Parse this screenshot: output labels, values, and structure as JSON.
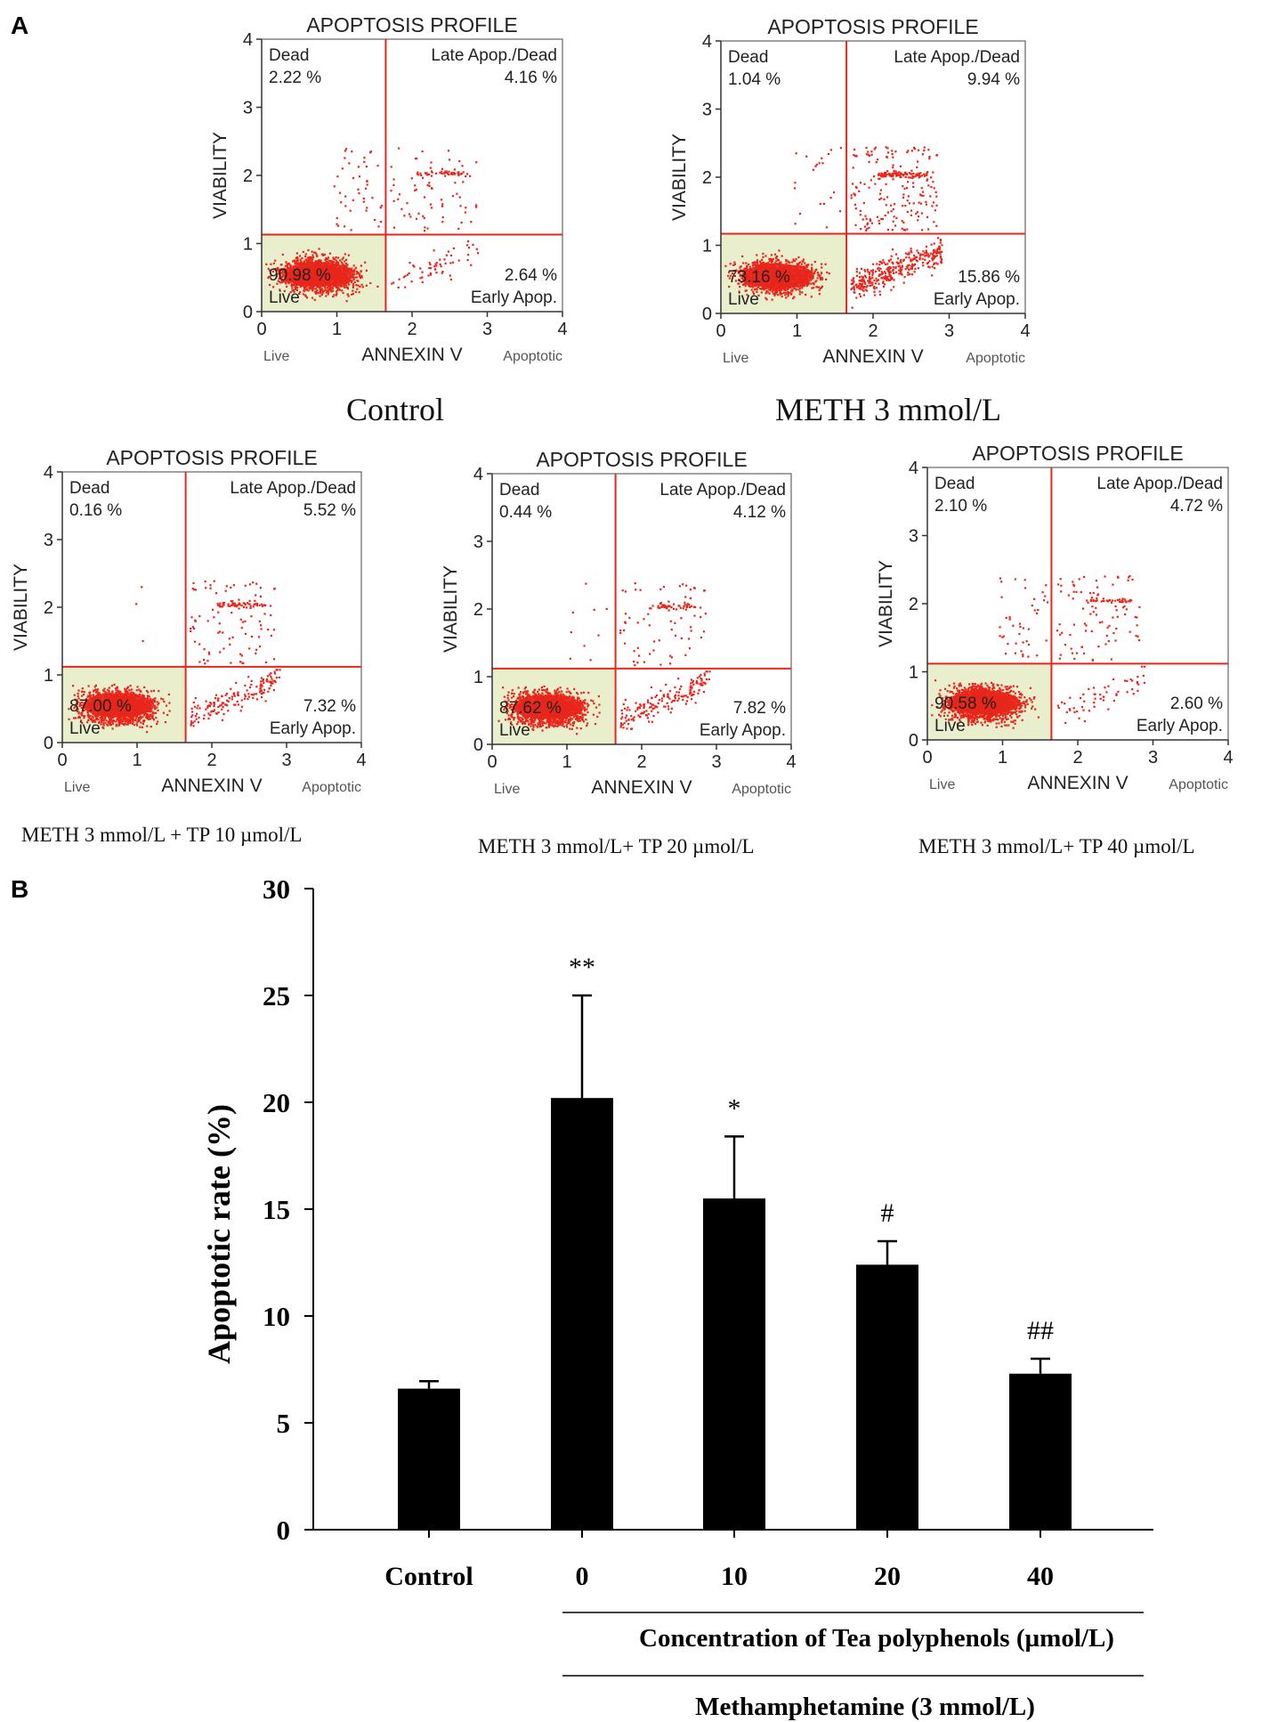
{
  "panel_labels": {
    "a": "A",
    "b": "B"
  },
  "colors": {
    "dots": "#e8261b",
    "gate_line": "#e8261b",
    "live_fill": "#e9efcc",
    "bar_fill": "#000000"
  },
  "chart_data": [
    {
      "type": "scatter",
      "title": "APOPTOSIS PROFILE",
      "caption": "Control",
      "xlabel": "ANNEXIN V",
      "ylabel": "VIABILITY",
      "x_left_label": "Live",
      "x_right_label": "Apoptotic",
      "xlim": [
        0,
        4
      ],
      "ylim": [
        0,
        4
      ],
      "xticks": [
        "0",
        "1",
        "2",
        "3",
        "4"
      ],
      "yticks": [
        "0",
        "1",
        "2",
        "3",
        "4"
      ],
      "gate": {
        "x": 1.65,
        "y": 1.13
      },
      "quadrants": {
        "dead": {
          "label": "Dead",
          "value": "2.22 %"
        },
        "late": {
          "label": "Late Apop./Dead",
          "value": "4.16 %"
        },
        "live": {
          "label": "Live",
          "value": "90.98 %"
        },
        "early": {
          "label": "Early Apop.",
          "value": "2.64 %"
        }
      }
    },
    {
      "type": "scatter",
      "title": "APOPTOSIS PROFILE",
      "caption": "METH 3 mmol/L",
      "xlabel": "ANNEXIN V",
      "ylabel": "VIABILITY",
      "x_left_label": "Live",
      "x_right_label": "Apoptotic",
      "xlim": [
        0,
        4
      ],
      "ylim": [
        0,
        4
      ],
      "xticks": [
        "0",
        "1",
        "2",
        "3",
        "4"
      ],
      "yticks": [
        "0",
        "1",
        "2",
        "3",
        "4"
      ],
      "gate": {
        "x": 1.65,
        "y": 1.17
      },
      "quadrants": {
        "dead": {
          "label": "Dead",
          "value": "1.04 %"
        },
        "late": {
          "label": "Late Apop./Dead",
          "value": "9.94 %"
        },
        "live": {
          "label": "Live",
          "value": "73.16 %"
        },
        "early": {
          "label": "Early Apop.",
          "value": "15.86 %"
        }
      }
    },
    {
      "type": "scatter",
      "title": "APOPTOSIS PROFILE",
      "caption": "METH 3 mmol/L + TP 10 µmol/L",
      "xlabel": "ANNEXIN V",
      "ylabel": "VIABILITY",
      "x_left_label": "Live",
      "x_right_label": "Apoptotic",
      "xlim": [
        0,
        4
      ],
      "ylim": [
        0,
        4
      ],
      "xticks": [
        "0",
        "1",
        "2",
        "3",
        "4"
      ],
      "yticks": [
        "0",
        "1",
        "2",
        "3",
        "4"
      ],
      "gate": {
        "x": 1.65,
        "y": 1.12
      },
      "quadrants": {
        "dead": {
          "label": "Dead",
          "value": "0.16 %"
        },
        "late": {
          "label": "Late Apop./Dead",
          "value": "5.52 %"
        },
        "live": {
          "label": "Live",
          "value": "87.00 %"
        },
        "early": {
          "label": "Early Apop.",
          "value": "7.32 %"
        }
      }
    },
    {
      "type": "scatter",
      "title": "APOPTOSIS PROFILE",
      "caption": "METH 3 mmol/L+ TP 20 µmol/L",
      "xlabel": "ANNEXIN V",
      "ylabel": "VIABILITY",
      "x_left_label": "Live",
      "x_right_label": "Apoptotic",
      "xlim": [
        0,
        4
      ],
      "ylim": [
        0,
        4
      ],
      "xticks": [
        "0",
        "1",
        "2",
        "3",
        "4"
      ],
      "yticks": [
        "0",
        "1",
        "2",
        "3",
        "4"
      ],
      "gate": {
        "x": 1.65,
        "y": 1.12
      },
      "quadrants": {
        "dead": {
          "label": "Dead",
          "value": "0.44 %"
        },
        "late": {
          "label": "Late Apop./Dead",
          "value": "4.12 %"
        },
        "live": {
          "label": "Live",
          "value": "87.62 %"
        },
        "early": {
          "label": "Early Apop.",
          "value": "7.82 %"
        }
      }
    },
    {
      "type": "scatter",
      "title": "APOPTOSIS PROFILE",
      "caption": "METH 3 mmol/L+ TP 40 µmol/L",
      "xlabel": "ANNEXIN V",
      "ylabel": "VIABILITY",
      "x_left_label": "Live",
      "x_right_label": "Apoptotic",
      "xlim": [
        0,
        4
      ],
      "ylim": [
        0,
        4
      ],
      "xticks": [
        "0",
        "1",
        "2",
        "3",
        "4"
      ],
      "yticks": [
        "0",
        "1",
        "2",
        "3",
        "4"
      ],
      "gate": {
        "x": 1.65,
        "y": 1.12
      },
      "quadrants": {
        "dead": {
          "label": "Dead",
          "value": "2.10 %"
        },
        "late": {
          "label": "Late Apop./Dead",
          "value": "4.72 %"
        },
        "live": {
          "label": "Live",
          "value": "90.58 %"
        },
        "early": {
          "label": "Early Apop.",
          "value": "2.60 %"
        }
      }
    },
    {
      "type": "bar",
      "categories": [
        "Control",
        "0",
        "10",
        "20",
        "40"
      ],
      "values": [
        6.6,
        20.2,
        15.5,
        12.4,
        7.3
      ],
      "errors": [
        0.35,
        4.8,
        2.9,
        1.1,
        0.7
      ],
      "annotations": [
        "",
        "**",
        "*",
        "#",
        "##"
      ],
      "ylabel": "Apoptotic rate (%)",
      "ylim": [
        0,
        30
      ],
      "yticks": [
        "0",
        "5",
        "10",
        "15",
        "20",
        "25",
        "30"
      ],
      "group_label_1": "Concentration of Tea polyphenols (µmol/L)",
      "group_label_2": "Methamphetamine (3 mmol/L)"
    }
  ]
}
